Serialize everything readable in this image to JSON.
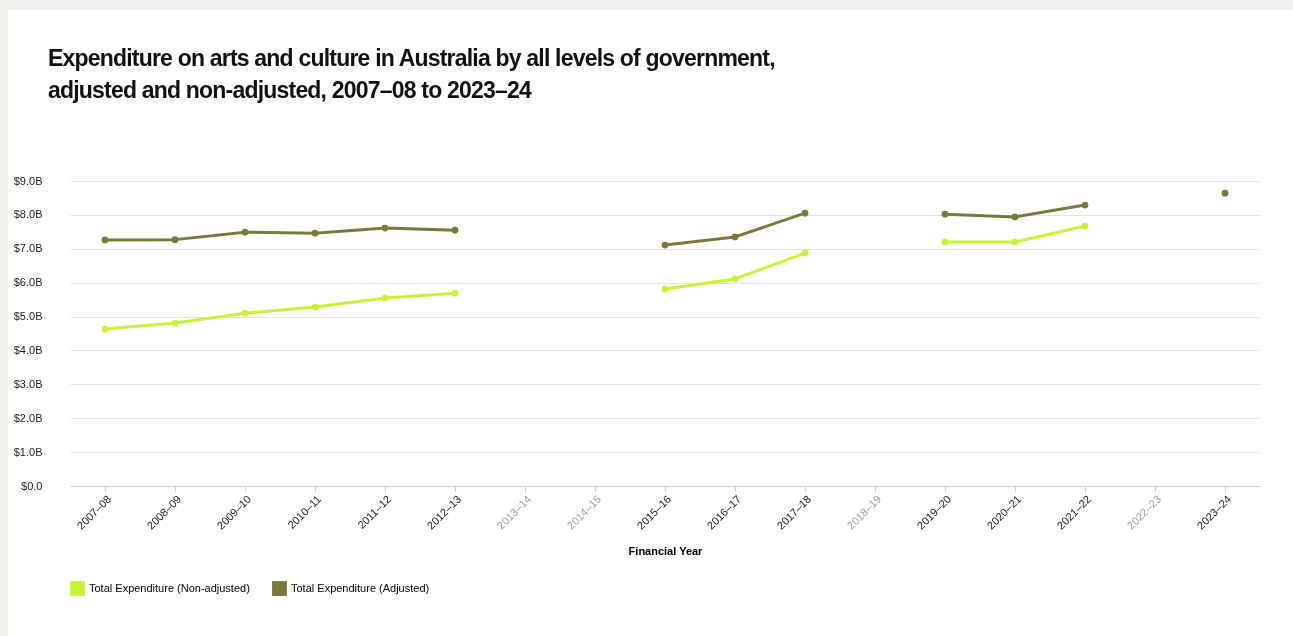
{
  "chart_data": {
    "type": "line",
    "title": "Expenditure on arts and culture in Australia by all levels of government, adjusted and non-adjusted, 2007–08 to 2023–24",
    "xlabel": "Financial Year",
    "categories": [
      "2007–08",
      "2008–09",
      "2009–10",
      "2010–11",
      "2011–12",
      "2012–13",
      "2013–14",
      "2014–15",
      "2015–16",
      "2016–17",
      "2017–18",
      "2018–19",
      "2019–20",
      "2020–21",
      "2021–22",
      "2022–23",
      "2023–24"
    ],
    "series": [
      {
        "name": "Total Expenditure (Non-adjusted)",
        "color": "#c6f432",
        "values": [
          4.63,
          4.81,
          5.1,
          5.28,
          5.55,
          5.69,
          null,
          null,
          5.81,
          6.11,
          6.87,
          null,
          7.2,
          7.2,
          7.67,
          null,
          null
        ]
      },
      {
        "name": "Total Expenditure (Adjusted)",
        "color": "#777a3a",
        "values": [
          7.26,
          7.27,
          7.49,
          7.46,
          7.61,
          7.55,
          null,
          null,
          7.11,
          7.35,
          8.05,
          null,
          8.02,
          7.94,
          8.29,
          null,
          8.64
        ]
      }
    ],
    "ylim": [
      0,
      9
    ],
    "yticks": [
      {
        "value": 0,
        "label": "$0.0"
      },
      {
        "value": 1,
        "label": "$1.0B"
      },
      {
        "value": 2,
        "label": "$2.0B"
      },
      {
        "value": 3,
        "label": "$3.0B"
      },
      {
        "value": 4,
        "label": "$4.0B"
      },
      {
        "value": 5,
        "label": "$5.0B"
      },
      {
        "value": 6,
        "label": "$6.0B"
      },
      {
        "value": 7,
        "label": "$7.0B"
      },
      {
        "value": 8,
        "label": "$8.0B"
      },
      {
        "value": 9,
        "label": "$9.0B"
      }
    ],
    "grid": "y",
    "legend": "bottom left",
    "marker": "circle",
    "line_style": "solid"
  }
}
